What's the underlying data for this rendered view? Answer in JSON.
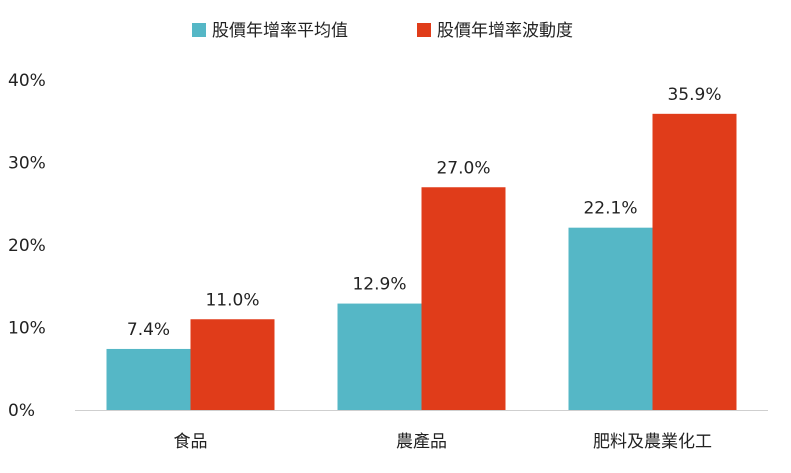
{
  "chart_data": {
    "type": "bar",
    "categories": [
      "食品",
      "農產品",
      "肥料及農業化工"
    ],
    "series": [
      {
        "name": "股價年增率平均值",
        "values": [
          7.4,
          12.9,
          22.1
        ],
        "labels": [
          "7.4%",
          "12.9%",
          "22.1%"
        ],
        "color": "#55b7c6"
      },
      {
        "name": "股價年增率波動度",
        "values": [
          11.0,
          27.0,
          35.9
        ],
        "labels": [
          "11.0%",
          "27.0%",
          "35.9%"
        ],
        "color": "#e03c1a"
      }
    ],
    "ylim": [
      0,
      40
    ],
    "yticks": [
      0,
      10,
      20,
      30,
      40
    ],
    "ytick_labels": [
      "0%",
      "10%",
      "20%",
      "30%",
      "40%"
    ],
    "legend_position": "top-center",
    "grid": false
  }
}
